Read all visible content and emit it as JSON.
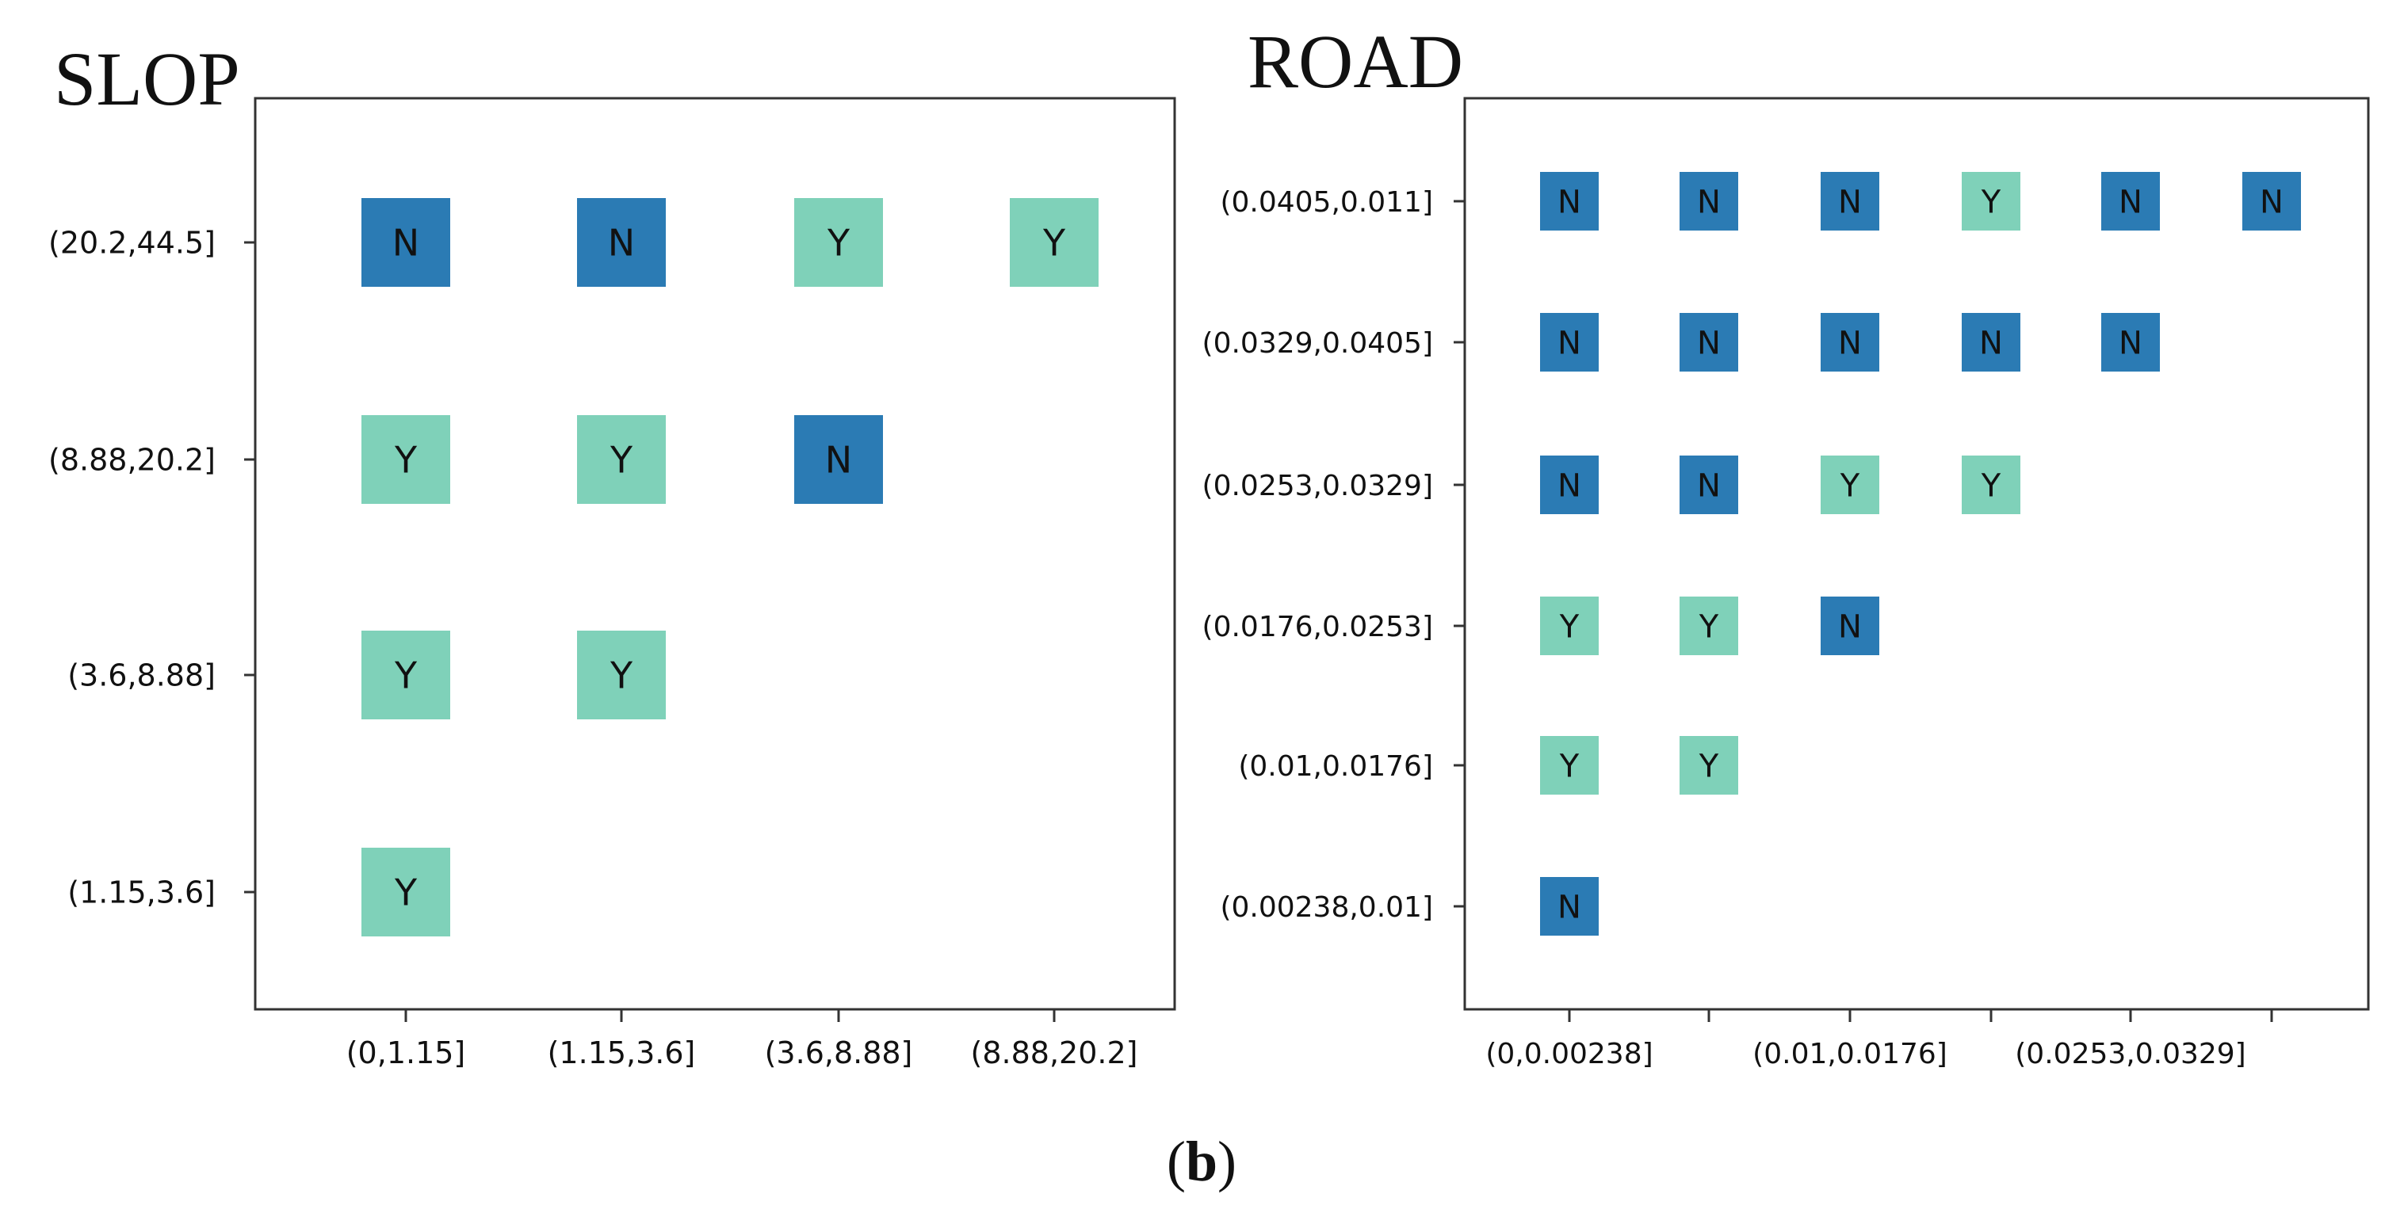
{
  "figure": {
    "panel_label": "b"
  },
  "colors": {
    "N": "#2b7bb4",
    "Y": "#7fd1b9",
    "axis": "#333333",
    "text": "#111111"
  },
  "chart_data": [
    {
      "type": "heatmap",
      "title": "SLOP",
      "xlabel": "",
      "ylabel": "",
      "x_ticks": [
        "(0,1.15]",
        "(1.15,3.6]",
        "(3.6,8.88]",
        "(8.88,20.2]"
      ],
      "y_ticks": [
        "(20.2,44.5]",
        "(8.88,20.2]",
        "(3.6,8.88]",
        "(1.15,3.6]"
      ],
      "legend": "none",
      "grid": false,
      "cells": [
        {
          "x": "(0,1.15]",
          "y": "(20.2,44.5]",
          "value": "N"
        },
        {
          "x": "(1.15,3.6]",
          "y": "(20.2,44.5]",
          "value": "N"
        },
        {
          "x": "(3.6,8.88]",
          "y": "(20.2,44.5]",
          "value": "Y"
        },
        {
          "x": "(8.88,20.2]",
          "y": "(20.2,44.5]",
          "value": "Y"
        },
        {
          "x": "(0,1.15]",
          "y": "(8.88,20.2]",
          "value": "Y"
        },
        {
          "x": "(1.15,3.6]",
          "y": "(8.88,20.2]",
          "value": "Y"
        },
        {
          "x": "(3.6,8.88]",
          "y": "(8.88,20.2]",
          "value": "N"
        },
        {
          "x": "(0,1.15]",
          "y": "(3.6,8.88]",
          "value": "Y"
        },
        {
          "x": "(1.15,3.6]",
          "y": "(3.6,8.88]",
          "value": "Y"
        },
        {
          "x": "(0,1.15]",
          "y": "(1.15,3.6]",
          "value": "Y"
        }
      ]
    },
    {
      "type": "heatmap",
      "title": "ROAD",
      "xlabel": "",
      "ylabel": "",
      "x_ticks": [
        "(0,0.00238]",
        "",
        "(0.01,0.0176]",
        "",
        "(0.0253,0.0329]",
        ""
      ],
      "y_ticks": [
        "(0.0405,0.011]",
        "(0.0329,0.0405]",
        "(0.0253,0.0329]",
        "(0.0176,0.0253]",
        "(0.01,0.0176]",
        "(0.00238,0.01]"
      ],
      "legend": "none",
      "grid": false,
      "cells": [
        {
          "col": 0,
          "row": 0,
          "value": "N"
        },
        {
          "col": 1,
          "row": 0,
          "value": "N"
        },
        {
          "col": 2,
          "row": 0,
          "value": "N"
        },
        {
          "col": 3,
          "row": 0,
          "value": "Y"
        },
        {
          "col": 4,
          "row": 0,
          "value": "N"
        },
        {
          "col": 5,
          "row": 0,
          "value": "N"
        },
        {
          "col": 0,
          "row": 1,
          "value": "N"
        },
        {
          "col": 1,
          "row": 1,
          "value": "N"
        },
        {
          "col": 2,
          "row": 1,
          "value": "N"
        },
        {
          "col": 3,
          "row": 1,
          "value": "N"
        },
        {
          "col": 4,
          "row": 1,
          "value": "N"
        },
        {
          "col": 0,
          "row": 2,
          "value": "N"
        },
        {
          "col": 1,
          "row": 2,
          "value": "N"
        },
        {
          "col": 2,
          "row": 2,
          "value": "Y"
        },
        {
          "col": 3,
          "row": 2,
          "value": "Y"
        },
        {
          "col": 0,
          "row": 3,
          "value": "Y"
        },
        {
          "col": 1,
          "row": 3,
          "value": "Y"
        },
        {
          "col": 2,
          "row": 3,
          "value": "N"
        },
        {
          "col": 0,
          "row": 4,
          "value": "Y"
        },
        {
          "col": 1,
          "row": 4,
          "value": "Y"
        },
        {
          "col": 0,
          "row": 5,
          "value": "N"
        }
      ]
    }
  ]
}
